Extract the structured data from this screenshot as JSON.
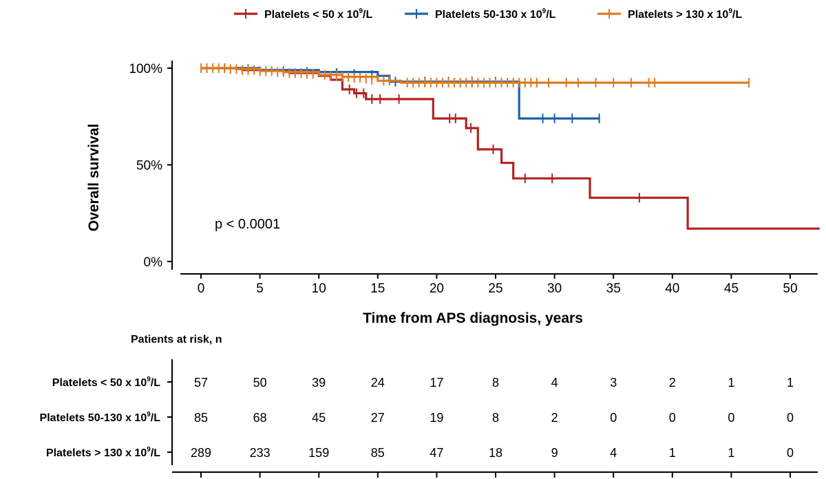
{
  "chart_data": {
    "type": "line",
    "subtype": "kaplan-meier",
    "title": "",
    "xlabel": "Time from APS diagnosis, years",
    "ylabel": "Overall survival",
    "xlim": [
      -2.5,
      52.5
    ],
    "ylim": [
      0,
      1
    ],
    "x_ticks": [
      0,
      5,
      10,
      15,
      20,
      25,
      30,
      35,
      40,
      45,
      50
    ],
    "y_ticks": [
      0,
      0.5,
      1
    ],
    "y_tick_labels": [
      "0%",
      "50%",
      "100%"
    ],
    "grid": false,
    "legend_position": "top",
    "annotation": "p < 0.0001",
    "series": [
      {
        "name": "Platelets < 50 x 10",
        "name_sup": "9",
        "name_tail": "/L",
        "color": "#B22222",
        "steps": [
          [
            0,
            1.0
          ],
          [
            3.5,
            0.99
          ],
          [
            7.5,
            0.975
          ],
          [
            10,
            0.96
          ],
          [
            11,
            0.94
          ],
          [
            12,
            0.89
          ],
          [
            13,
            0.87
          ],
          [
            14,
            0.84
          ],
          [
            19.7,
            0.74
          ],
          [
            22.5,
            0.69
          ],
          [
            23.5,
            0.58
          ],
          [
            25.5,
            0.51
          ],
          [
            26.5,
            0.43
          ],
          [
            33,
            0.33
          ],
          [
            41.3,
            0.17
          ],
          [
            52.5,
            0.17
          ]
        ],
        "censored": [
          [
            12.6,
            0.89
          ],
          [
            13.2,
            0.87
          ],
          [
            13.8,
            0.87
          ],
          [
            14.5,
            0.84
          ],
          [
            15.2,
            0.84
          ],
          [
            16.8,
            0.84
          ],
          [
            21.1,
            0.74
          ],
          [
            21.6,
            0.74
          ],
          [
            22.9,
            0.69
          ],
          [
            24.8,
            0.58
          ],
          [
            27.5,
            0.43
          ],
          [
            29.8,
            0.43
          ],
          [
            37.2,
            0.33
          ]
        ]
      },
      {
        "name": "Platelets 50-130 x 10",
        "name_sup": "9",
        "name_tail": "/L",
        "color": "#1F5FA8",
        "steps": [
          [
            0,
            1.0
          ],
          [
            5,
            0.99
          ],
          [
            10,
            0.98
          ],
          [
            15,
            0.96
          ],
          [
            16,
            0.93
          ],
          [
            27,
            0.74
          ],
          [
            33.8,
            0.74
          ]
        ],
        "censored": [
          [
            2,
            1.0
          ],
          [
            4,
            0.995
          ],
          [
            7,
            0.985
          ],
          [
            9,
            0.98
          ],
          [
            11.5,
            0.975
          ],
          [
            13,
            0.97
          ],
          [
            14.5,
            0.965
          ],
          [
            16.5,
            0.93
          ],
          [
            19,
            0.93
          ],
          [
            21,
            0.93
          ],
          [
            23,
            0.93
          ],
          [
            25,
            0.93
          ],
          [
            29,
            0.74
          ],
          [
            30,
            0.74
          ],
          [
            31.5,
            0.74
          ],
          [
            33.8,
            0.74
          ]
        ]
      },
      {
        "name": "Platelets > 130 x 10",
        "name_sup": "9",
        "name_tail": "/L",
        "color": "#E07B1F",
        "steps": [
          [
            0,
            1.0
          ],
          [
            3,
            0.995
          ],
          [
            5,
            0.985
          ],
          [
            7,
            0.98
          ],
          [
            10,
            0.965
          ],
          [
            12,
            0.955
          ],
          [
            15,
            0.935
          ],
          [
            17,
            0.925
          ],
          [
            46.5,
            0.925
          ]
        ],
        "censored": [
          [
            0,
            1.0
          ],
          [
            0.5,
            1.0
          ],
          [
            1,
            1.0
          ],
          [
            1.5,
            1.0
          ],
          [
            2,
            1.0
          ],
          [
            2.5,
            0.995
          ],
          [
            3,
            0.995
          ],
          [
            3.5,
            0.99
          ],
          [
            4,
            0.99
          ],
          [
            4.5,
            0.99
          ],
          [
            5,
            0.985
          ],
          [
            5.5,
            0.985
          ],
          [
            6,
            0.985
          ],
          [
            6.5,
            0.98
          ],
          [
            7,
            0.98
          ],
          [
            7.5,
            0.975
          ],
          [
            8,
            0.975
          ],
          [
            8.5,
            0.975
          ],
          [
            9,
            0.97
          ],
          [
            9.5,
            0.97
          ],
          [
            10.5,
            0.965
          ],
          [
            11,
            0.96
          ],
          [
            11.5,
            0.96
          ],
          [
            12,
            0.955
          ],
          [
            12.5,
            0.955
          ],
          [
            13,
            0.95
          ],
          [
            13.5,
            0.95
          ],
          [
            14,
            0.945
          ],
          [
            14.5,
            0.94
          ],
          [
            15.5,
            0.935
          ],
          [
            16,
            0.935
          ],
          [
            17.5,
            0.925
          ],
          [
            18,
            0.925
          ],
          [
            18.5,
            0.925
          ],
          [
            19,
            0.925
          ],
          [
            19.5,
            0.925
          ],
          [
            20,
            0.925
          ],
          [
            20.5,
            0.925
          ],
          [
            21,
            0.925
          ],
          [
            21.5,
            0.925
          ],
          [
            22,
            0.925
          ],
          [
            22.5,
            0.925
          ],
          [
            23,
            0.925
          ],
          [
            23.5,
            0.925
          ],
          [
            24,
            0.925
          ],
          [
            24.5,
            0.925
          ],
          [
            25,
            0.925
          ],
          [
            25.5,
            0.925
          ],
          [
            26,
            0.925
          ],
          [
            26.5,
            0.925
          ],
          [
            27,
            0.925
          ],
          [
            27.5,
            0.925
          ],
          [
            28,
            0.925
          ],
          [
            28.5,
            0.925
          ],
          [
            29.5,
            0.925
          ],
          [
            31,
            0.925
          ],
          [
            32,
            0.925
          ],
          [
            33.5,
            0.925
          ],
          [
            35,
            0.925
          ],
          [
            36.5,
            0.925
          ],
          [
            38,
            0.925
          ],
          [
            38.5,
            0.925
          ],
          [
            46.5,
            0.925
          ]
        ]
      }
    ],
    "risk_table": {
      "title": "Patients at risk, n",
      "times": [
        0,
        5,
        10,
        15,
        20,
        25,
        30,
        35,
        40,
        45,
        50
      ],
      "rows": [
        {
          "label": "Platelets < 50 x 10",
          "label_sup": "9",
          "label_tail": "/L",
          "counts": [
            57,
            50,
            39,
            24,
            17,
            8,
            4,
            3,
            2,
            1,
            1
          ]
        },
        {
          "label": "Platelets 50-130 x 10",
          "label_sup": "9",
          "label_tail": "/L",
          "counts": [
            85,
            68,
            45,
            27,
            19,
            8,
            2,
            0,
            0,
            0,
            0
          ]
        },
        {
          "label": "Platelets > 130 x 10",
          "label_sup": "9",
          "label_tail": "/L",
          "counts": [
            289,
            233,
            159,
            85,
            47,
            18,
            9,
            4,
            1,
            1,
            0
          ]
        }
      ]
    }
  }
}
